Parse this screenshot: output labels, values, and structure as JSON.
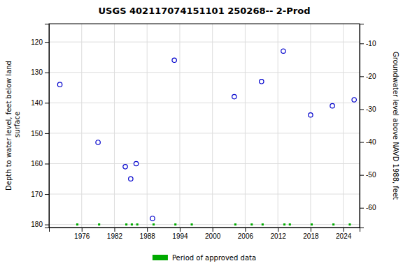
{
  "chart_data": {
    "type": "scatter",
    "title": "USGS 402117074151101 250268-- 2-Prod",
    "y_label": "Depth to water level, feet below land\n surface",
    "y2_label": "Groundwater level above NAVD 1988, feet",
    "xlim": [
      1970,
      2027
    ],
    "xticks": [
      1976,
      1982,
      1988,
      1994,
      2000,
      2006,
      2012,
      2018,
      2024
    ],
    "ylim": [
      181,
      114
    ],
    "yticks": [
      120,
      130,
      140,
      150,
      160,
      170,
      180
    ],
    "y2lim": [
      -66,
      -4
    ],
    "y2ticks": [
      -10,
      -20,
      -30,
      -40,
      -50,
      -60
    ],
    "grid": true,
    "legend": "bottom",
    "series": [
      {
        "type": "scatter",
        "marker": "open-circle",
        "color": "#0000cc",
        "x": [
          1972,
          1979,
          1984,
          1985,
          1986,
          1989,
          1993,
          2004,
          2009,
          2013,
          2018,
          2022,
          2026
        ],
        "values": [
          134,
          153,
          161,
          165,
          160,
          178,
          126,
          138,
          133,
          123,
          144,
          141,
          139
        ]
      },
      {
        "type": "segment",
        "name": "Period of approved data",
        "color": "#00aa00",
        "x": [
          [
            1975,
            1975.4
          ],
          [
            1979,
            1979.4
          ],
          [
            1984,
            1984.4
          ],
          [
            1985,
            1985.4
          ],
          [
            1986,
            1986.4
          ],
          [
            1989,
            1989.4
          ],
          [
            1993,
            1993.4
          ],
          [
            1996,
            1996.4
          ],
          [
            2004,
            2004.4
          ],
          [
            2007,
            2007.4
          ],
          [
            2009,
            2009.4
          ],
          [
            2013,
            2013.4
          ],
          [
            2014,
            2014.4
          ],
          [
            2018,
            2018.4
          ],
          [
            2022,
            2022.4
          ],
          [
            2025,
            2025.4
          ]
        ],
        "values": [
          180,
          180,
          180,
          180,
          180,
          180,
          180,
          180,
          180,
          180,
          180,
          180,
          180,
          180,
          180,
          180
        ]
      }
    ]
  }
}
